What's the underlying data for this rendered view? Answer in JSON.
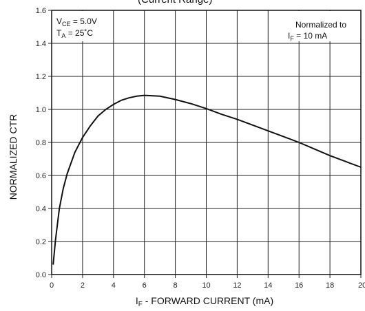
{
  "chart_data": {
    "type": "line",
    "title": "(Current Range)",
    "xlabel": "I",
    "xlabel_sub": "F",
    "xlabel_rest": " - FORWARD CURRENT (mA)",
    "ylabel": "NORMALIZED CTR",
    "xlim": [
      0,
      20
    ],
    "ylim": [
      0.0,
      1.6
    ],
    "x_ticks": [
      "0",
      "2",
      "4",
      "6",
      "8",
      "10",
      "12",
      "14",
      "16",
      "18",
      "20"
    ],
    "y_ticks": [
      "0.0",
      "0.2",
      "0.4",
      "0.6",
      "0.8",
      "1.0",
      "1.2",
      "1.4",
      "1.6"
    ],
    "grid": true,
    "annotations": {
      "left_line1_main": "V",
      "left_line1_sub": "CE",
      "left_line1_rest": " = 5.0V",
      "left_line2_main": "T",
      "left_line2_sub": "A",
      "left_line2_rest": " = 25˚C",
      "right_line1": "Normalized to",
      "right_line2_main": "I",
      "right_line2_sub": "F",
      "right_line2_rest": " = 10 mA"
    },
    "series": [
      {
        "x": [
          0.1,
          0.25,
          0.5,
          0.75,
          1.0,
          1.5,
          2.0,
          2.5,
          3.0,
          3.5,
          4.0,
          4.5,
          5.0,
          5.5,
          6.0,
          7.0,
          8.0,
          9.0,
          10.0,
          11.0,
          12.0,
          13.0,
          14.0,
          15.0,
          16.0,
          17.0,
          18.0,
          19.0,
          20.0
        ],
        "y": [
          0.06,
          0.21,
          0.4,
          0.52,
          0.61,
          0.74,
          0.83,
          0.9,
          0.96,
          1.0,
          1.03,
          1.055,
          1.07,
          1.08,
          1.085,
          1.08,
          1.06,
          1.035,
          1.005,
          0.97,
          0.94,
          0.905,
          0.87,
          0.835,
          0.8,
          0.76,
          0.72,
          0.685,
          0.65
        ]
      }
    ]
  }
}
